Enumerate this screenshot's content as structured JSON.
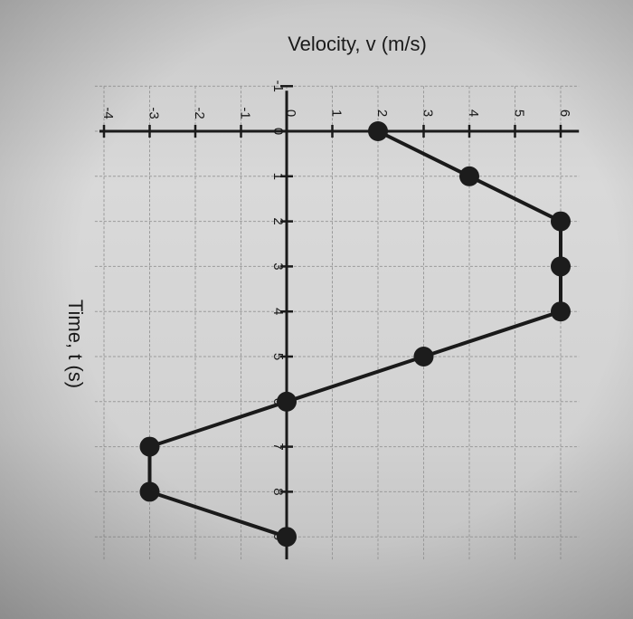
{
  "chart_data": {
    "type": "line",
    "orientation": "rotated-90-cw",
    "title": "",
    "xlabel": "Time, t (s)",
    "ylabel": "Velocity, v (m/s)",
    "x_ticks": [
      "-1",
      "0",
      "1",
      "2",
      "3",
      "4",
      "5",
      "6",
      "7",
      "8",
      "9"
    ],
    "y_ticks": [
      "-4",
      "-3",
      "-2",
      "-1",
      "0",
      "1",
      "2",
      "3",
      "4",
      "5",
      "6"
    ],
    "xlim": [
      -1,
      9.5
    ],
    "ylim": [
      -4.2,
      6.4
    ],
    "grid": true,
    "series": [
      {
        "x": [
          0,
          1,
          2,
          3,
          4,
          5,
          6,
          7,
          8,
          9
        ],
        "y": [
          2,
          4,
          6,
          6,
          6,
          3,
          0,
          -3,
          -3,
          0
        ]
      }
    ]
  }
}
